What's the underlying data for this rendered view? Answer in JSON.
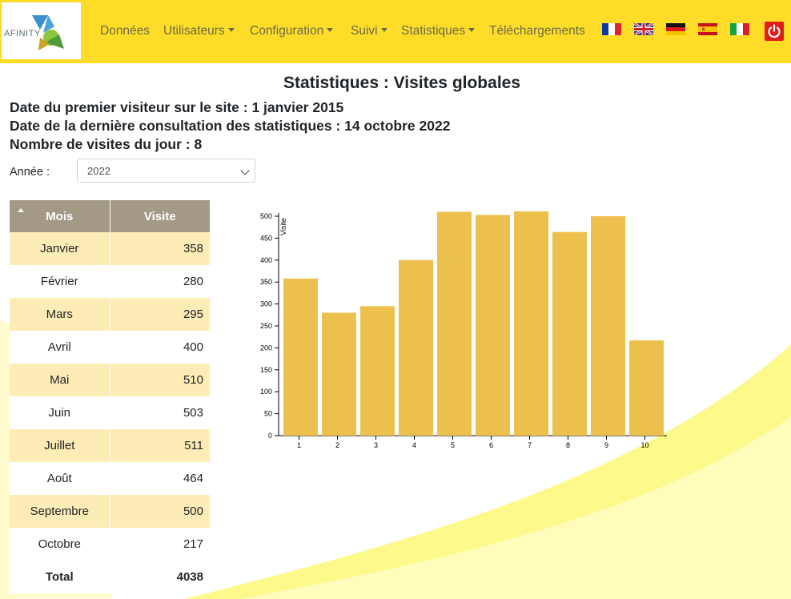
{
  "navbar": {
    "logo_text": "AFINITY",
    "items": [
      {
        "label": "Données",
        "dropdown": false
      },
      {
        "label": "Utilisateurs",
        "dropdown": true
      },
      {
        "label": "Configuration",
        "dropdown": true
      },
      {
        "label": "Suivi",
        "dropdown": true
      },
      {
        "label": "Statistiques",
        "dropdown": true
      },
      {
        "label": "Téléchargements",
        "dropdown": false
      }
    ],
    "flags": [
      "fr-flag-icon",
      "uk-flag-icon",
      "de-flag-icon",
      "es-flag-icon",
      "it-flag-icon"
    ],
    "logout_icon": "power-icon"
  },
  "page": {
    "title": "Statistiques : Visites globales",
    "first_visit": "Date du premier visiteur sur le site : 1 janvier 2015",
    "last_consult": "Date de la dernière consultation des statistiques : 14 octobre 2022",
    "visits_today": "Nombre de visites du jour : 8"
  },
  "filter": {
    "year_label": "Année :",
    "year_value": "2022"
  },
  "table": {
    "headers": {
      "month": "Mois",
      "visits": "Visite"
    },
    "rows": [
      {
        "month": "Janvier",
        "visits": "358"
      },
      {
        "month": "Février",
        "visits": "280"
      },
      {
        "month": "Mars",
        "visits": "295"
      },
      {
        "month": "Avril",
        "visits": "400"
      },
      {
        "month": "Mai",
        "visits": "510"
      },
      {
        "month": "Juin",
        "visits": "503"
      },
      {
        "month": "Juillet",
        "visits": "511"
      },
      {
        "month": "Août",
        "visits": "464"
      },
      {
        "month": "Septembre",
        "visits": "500"
      },
      {
        "month": "Octobre",
        "visits": "217"
      }
    ],
    "total_label": "Total",
    "total_value": "4038"
  },
  "colors": {
    "navbar": "#fedc28",
    "bar": "#ecc04c",
    "table_header": "#a39a86",
    "row_alt": "#fdecb5"
  },
  "chart_data": {
    "type": "bar",
    "categories": [
      "1",
      "2",
      "3",
      "4",
      "5",
      "6",
      "7",
      "8",
      "9",
      "10"
    ],
    "values": [
      358,
      280,
      295,
      400,
      510,
      503,
      511,
      464,
      500,
      217
    ],
    "ylabel": "Visite",
    "xlabel": "",
    "ylim": [
      0,
      500
    ],
    "yticks": [
      0,
      50,
      100,
      150,
      200,
      250,
      300,
      350,
      400,
      450,
      500
    ],
    "grid": false
  }
}
